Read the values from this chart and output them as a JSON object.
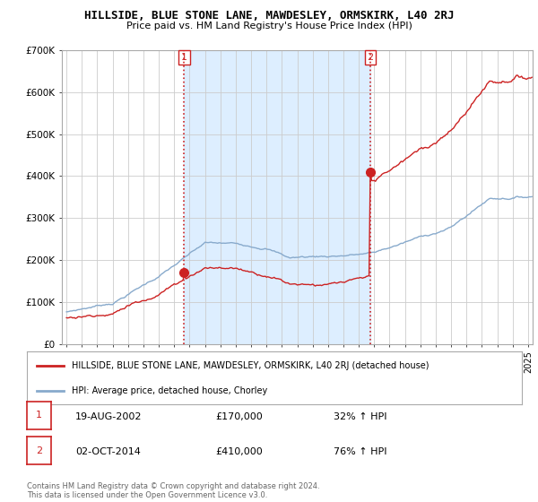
{
  "title": "HILLSIDE, BLUE STONE LANE, MAWDESLEY, ORMSKIRK, L40 2RJ",
  "subtitle": "Price paid vs. HM Land Registry's House Price Index (HPI)",
  "legend_label_red": "HILLSIDE, BLUE STONE LANE, MAWDESLEY, ORMSKIRK, L40 2RJ (detached house)",
  "legend_label_blue": "HPI: Average price, detached house, Chorley",
  "footer": "Contains HM Land Registry data © Crown copyright and database right 2024.\nThis data is licensed under the Open Government Licence v3.0.",
  "sale1_date": "19-AUG-2002",
  "sale1_price": "£170,000",
  "sale1_hpi": "32% ↑ HPI",
  "sale2_date": "02-OCT-2014",
  "sale2_price": "£410,000",
  "sale2_hpi": "76% ↑ HPI",
  "ylim": [
    0,
    700000
  ],
  "yticks": [
    0,
    100000,
    200000,
    300000,
    400000,
    500000,
    600000,
    700000
  ],
  "ytick_labels": [
    "£0",
    "£100K",
    "£200K",
    "£300K",
    "£400K",
    "£500K",
    "£600K",
    "£700K"
  ],
  "red_color": "#cc2222",
  "blue_color": "#88aacc",
  "shade_color": "#ddeeff",
  "vline_color": "#cc2222",
  "grid_color": "#cccccc",
  "bg_color": "#ffffff",
  "sale1_x": 2002.64,
  "sale1_y": 170000,
  "sale2_x": 2014.75,
  "sale2_y": 410000,
  "xmin": 1995.0,
  "xmax": 2025.3
}
